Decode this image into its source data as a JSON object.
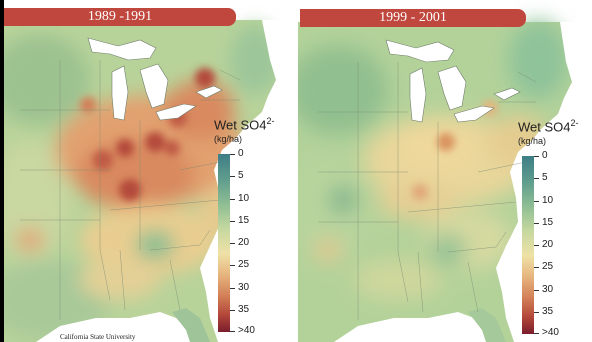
{
  "maps": [
    {
      "title": "1989 -1991",
      "legend": {
        "title": "Wet SO4",
        "superscript": "2-",
        "unit": "(kg/ha)",
        "ticks": [
          "0",
          "5",
          "10",
          "15",
          "20",
          "25",
          "30",
          "35",
          ">40"
        ]
      },
      "credit": "California State University"
    },
    {
      "title": "1999 - 2001",
      "legend": {
        "title": "Wet SO4",
        "superscript": "2-",
        "unit": "(kg/ha)",
        "ticks": [
          "0",
          "5",
          "10",
          "15",
          "20",
          "25",
          "30",
          "35",
          ">40"
        ]
      }
    }
  ],
  "colors": {
    "title_bar": "#c0473d",
    "low": "#3d7d86",
    "mid": "#efe1a6",
    "high": "#7a1d2c",
    "water": "#ffffff"
  }
}
